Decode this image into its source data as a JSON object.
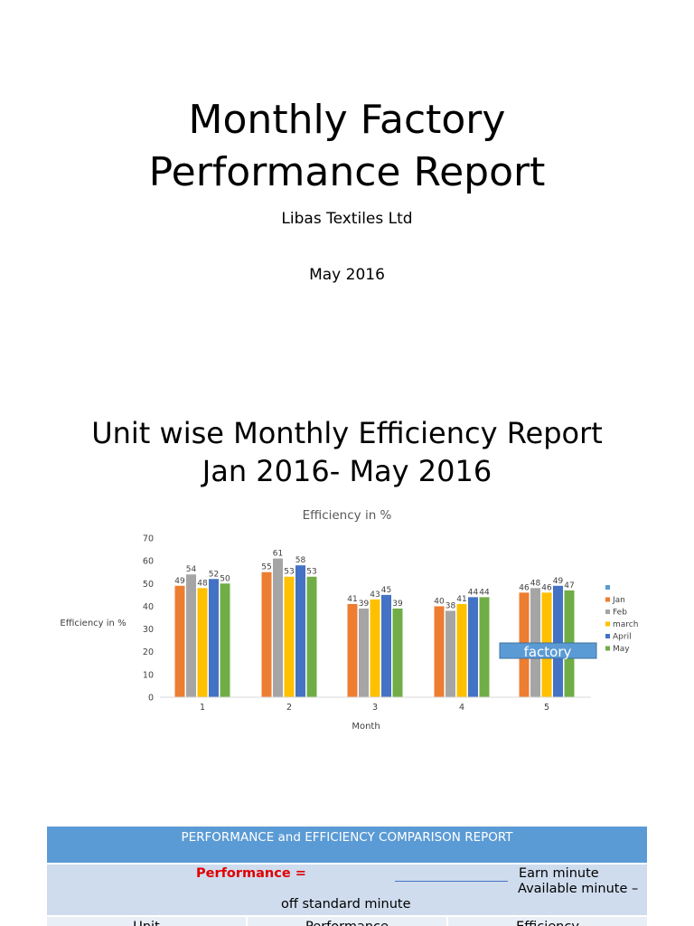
{
  "report": {
    "title_line1": "Monthly Factory",
    "title_line2": "Performance Report",
    "company": "Libas Textiles Ltd",
    "date": "May 2016"
  },
  "section": {
    "title_line1": "Unit wise Monthly Efficiency Report",
    "title_line2": "Jan 2016- May 2016"
  },
  "chart_data": {
    "type": "bar",
    "title": "Efficiency in %",
    "xlabel": "Month",
    "ylabel": "Efficiency in %",
    "ylim": [
      0,
      70
    ],
    "yticks": [
      0,
      10,
      20,
      30,
      40,
      50,
      60,
      70
    ],
    "categories": [
      "1",
      "2",
      "3",
      "4",
      "5"
    ],
    "legend_placement": "right",
    "grid": false,
    "series": [
      {
        "name": "Jan",
        "color": "#ed7d31",
        "values": [
          49,
          55,
          41,
          40,
          46
        ]
      },
      {
        "name": "Feb",
        "color": "#a5a5a5",
        "values": [
          54,
          61,
          39,
          38,
          48
        ]
      },
      {
        "name": "march",
        "color": "#ffc000",
        "values": [
          48,
          53,
          43,
          41,
          46
        ]
      },
      {
        "name": "April",
        "color": "#4472c4",
        "values": [
          52,
          58,
          45,
          44,
          49
        ]
      },
      {
        "name": "May",
        "color": "#70ad47",
        "values": [
          50,
          53,
          39,
          44,
          47
        ]
      }
    ],
    "legend_empty_entry_color": "#5b9bd5",
    "overlay_label": "factory"
  },
  "table": {
    "header": "PERFORMANCE and EFFICIENCY COMPARISON REPORT",
    "performance_label": "Performance =",
    "earn_minute": "Earn minute",
    "available_minute": "Available minute –",
    "off_standard": "off standard minute",
    "columns": [
      "Unit",
      "Performance",
      "Efficiency"
    ]
  }
}
